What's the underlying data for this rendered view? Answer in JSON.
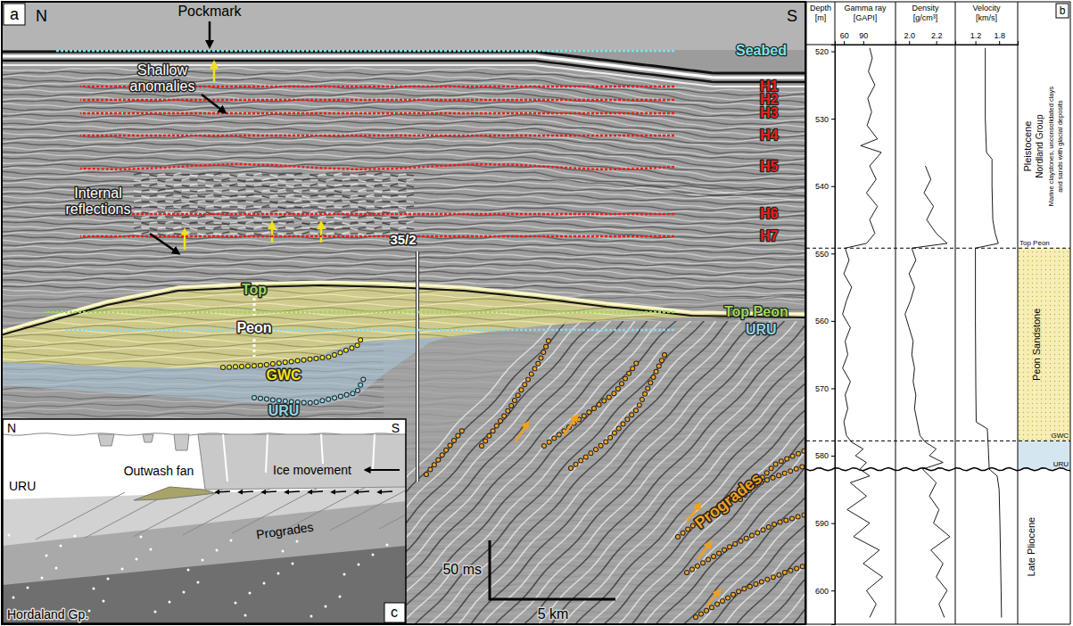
{
  "panel_a": {
    "letter": "a",
    "north": "N",
    "south": "S",
    "annotations": {
      "pockmark": "Pockmark",
      "shallow": "Shallow anomalies",
      "internal": "Internal reflections",
      "well": "35/2"
    },
    "horizons": [
      {
        "label": "Seabed",
        "color": "#7fe3ea"
      },
      {
        "label": "H1",
        "color": "#e8201c"
      },
      {
        "label": "H2",
        "color": "#e8201c"
      },
      {
        "label": "H3",
        "color": "#e8201c"
      },
      {
        "label": "H4",
        "color": "#e8201c"
      },
      {
        "label": "H5",
        "color": "#e8201c"
      },
      {
        "label": "H6",
        "color": "#e8201c"
      },
      {
        "label": "H7",
        "color": "#e8201c"
      },
      {
        "label": "Top Peon",
        "color": "#9ad85a"
      },
      {
        "label": "URU",
        "color": "#8fd6e6"
      }
    ],
    "peon": {
      "top": "Top",
      "name": "Peon",
      "gwc": "GWC",
      "uru": "URU"
    },
    "progrades": "Progrades",
    "scale_bar": {
      "time": "50 ms",
      "distance": "5 km"
    },
    "inset": {
      "letter": "c",
      "north": "N",
      "south": "S",
      "ice": "Ice movement",
      "uru": "URU",
      "fan": "Outwash fan",
      "progrades": "Progrades",
      "base": "Hordaland Gp."
    }
  },
  "chart_data": {
    "type": "well_log",
    "letter": "b",
    "ylabel": "Depth",
    "yunit": "[m]",
    "ylim": [
      519,
      605
    ],
    "yticks": [
      520,
      530,
      540,
      550,
      560,
      570,
      580,
      590,
      600
    ],
    "tracks": [
      {
        "name": "Gamma ray",
        "unit": "[GAPI]",
        "color": "#000000",
        "xlim": [
          46,
          140
        ],
        "xticks": [
          60,
          90
        ],
        "depth": [
          519.5,
          521,
          523,
          525,
          527,
          529,
          531,
          533,
          534,
          535,
          537,
          539,
          541,
          543,
          545,
          547,
          548.5,
          549.2,
          551,
          553,
          555,
          557,
          559,
          561,
          563,
          565,
          567,
          569,
          571,
          573,
          575,
          577,
          578,
          579,
          580,
          581,
          582,
          583,
          584,
          586,
          588,
          590,
          592,
          594,
          596,
          598,
          600,
          602,
          604
        ],
        "values": [
          100,
          104,
          98,
          108,
          97,
          103,
          96,
          112,
          86,
          118,
          100,
          110,
          95,
          112,
          100,
          108,
          95,
          62,
          68,
          60,
          72,
          64,
          58,
          70,
          62,
          66,
          58,
          70,
          62,
          66,
          60,
          64,
          72,
          90,
          78,
          95,
          85,
          100,
          70,
          95,
          65,
          100,
          75,
          115,
          90,
          120,
          95,
          110,
          100
        ]
      },
      {
        "name": "Density",
        "unit": "[g/cm³]",
        "color": "#000000",
        "xlim": [
          1.9,
          2.34
        ],
        "xticks": [
          {
            "value": 2,
            "label": "2.0"
          },
          2.2
        ],
        "depth": [
          537,
          539,
          541,
          543,
          545,
          547,
          548.5,
          549.2,
          551,
          553,
          555,
          557,
          559,
          561,
          563,
          565,
          567,
          569,
          571,
          573,
          575,
          577,
          578,
          579,
          580,
          581,
          582,
          584,
          586,
          588,
          590,
          592,
          594,
          596,
          598,
          600,
          602,
          604
        ],
        "values": [
          2.12,
          2.16,
          2.11,
          2.18,
          2.13,
          2.2,
          2.28,
          2.02,
          2.05,
          2.0,
          2.04,
          2.01,
          1.97,
          2.0,
          2.03,
          2.02,
          2.04,
          2.03,
          2.05,
          2.04,
          2.06,
          2.08,
          2.12,
          2.2,
          2.15,
          2.25,
          2.1,
          2.2,
          2.15,
          2.22,
          2.18,
          2.3,
          2.16,
          2.25,
          2.2,
          2.28,
          2.22,
          2.26
        ]
      },
      {
        "name": "Velocity",
        "unit": "[km/s]",
        "color": "#000000",
        "xlim": [
          0.69,
          2.27
        ],
        "xticks": [
          1.2,
          1.8
        ],
        "depth": [
          519.5,
          530,
          535,
          536,
          540,
          545,
          547,
          548.5,
          549.2,
          560,
          570,
          575,
          576,
          578,
          582,
          583,
          585,
          590,
          600,
          604
        ],
        "values": [
          1.45,
          1.45,
          1.48,
          1.62,
          1.62,
          1.64,
          1.7,
          1.78,
          1.2,
          1.2,
          1.21,
          1.22,
          1.5,
          1.52,
          1.55,
          1.75,
          1.8,
          1.82,
          1.85,
          1.86
        ]
      }
    ],
    "markers": [
      {
        "label": "Top Peon",
        "depth": 549.2,
        "line_style": "dashed"
      },
      {
        "label": "GWC",
        "depth": 577.8,
        "line_style": "dashed"
      },
      {
        "label": "URU",
        "depth": 582,
        "line_style": "wavy"
      }
    ],
    "zones": [
      {
        "label": "Peon Sandstone",
        "top": 549.2,
        "base": 577.8,
        "color": "#f6eeb4"
      },
      {
        "top": 577.8,
        "base": 582,
        "color": "#d4e6f0"
      }
    ],
    "lithology": {
      "age": "Pleistocene",
      "group": "Nordland Group",
      "description": [
        "Marine claystones, unconsolidated clays",
        "and sands with glacial deposits"
      ],
      "lower_age": "Late Pliocene"
    }
  }
}
